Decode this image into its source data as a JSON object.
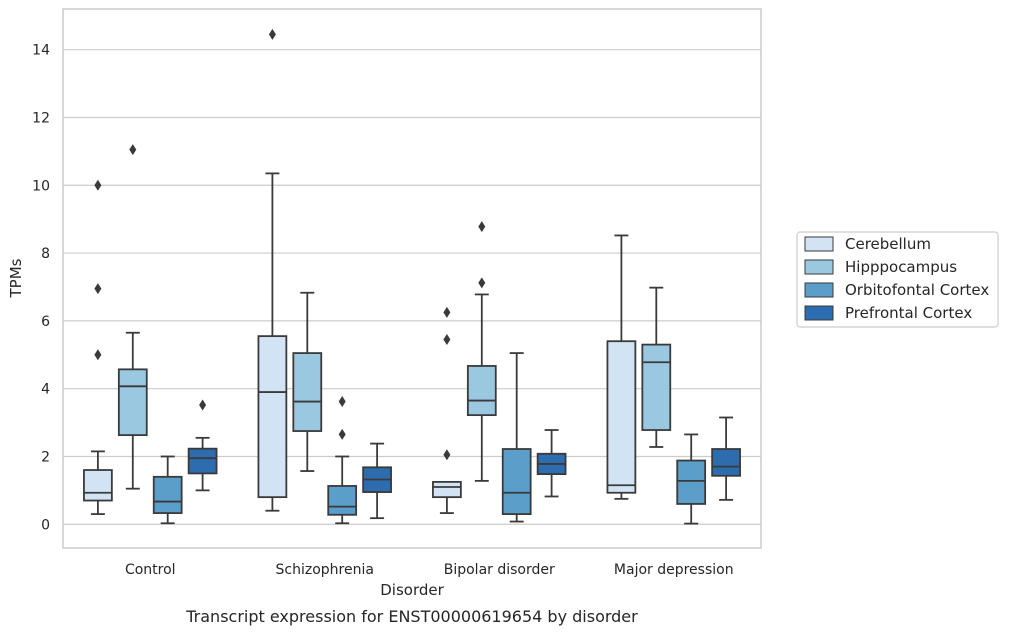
{
  "chart_data": {
    "type": "box",
    "title": "",
    "caption": "Transcript expression for ENST00000619654 by disorder",
    "xlabel": "Disorder",
    "ylabel": "TPMs",
    "ylim": [
      -0.7,
      15.2
    ],
    "yticks": [
      0,
      2,
      4,
      6,
      8,
      10,
      12,
      14
    ],
    "grid": "horizontal",
    "legend_position": "right",
    "categories": [
      "Control",
      "Schizophrenia",
      "Bipolar disorder",
      "Major depression"
    ],
    "series": [
      {
        "name": "Cerebellum",
        "color": "#d2e3f3",
        "boxes": [
          {
            "q1": 0.7,
            "median": 0.93,
            "q3": 1.6,
            "whisker_low": 0.3,
            "whisker_high": 2.15,
            "outliers": [
              5.0,
              6.95,
              10.0
            ]
          },
          {
            "q1": 0.8,
            "median": 3.9,
            "q3": 5.55,
            "whisker_low": 0.4,
            "whisker_high": 10.35,
            "outliers": [
              14.45
            ]
          },
          {
            "q1": 0.8,
            "median": 1.1,
            "q3": 1.25,
            "whisker_low": 0.33,
            "whisker_high": 1.25,
            "outliers": [
              2.05,
              5.45,
              6.25
            ]
          },
          {
            "q1": 0.93,
            "median": 1.15,
            "q3": 5.4,
            "whisker_low": 0.75,
            "whisker_high": 8.52,
            "outliers": []
          }
        ]
      },
      {
        "name": "Hipppocampus",
        "color": "#9ac8e0",
        "boxes": [
          {
            "q1": 2.63,
            "median": 4.07,
            "q3": 4.57,
            "whisker_low": 1.05,
            "whisker_high": 5.65,
            "outliers": [
              11.05
            ]
          },
          {
            "q1": 2.75,
            "median": 3.62,
            "q3": 5.05,
            "whisker_low": 1.57,
            "whisker_high": 6.83,
            "outliers": []
          },
          {
            "q1": 3.22,
            "median": 3.65,
            "q3": 4.67,
            "whisker_low": 1.28,
            "whisker_high": 6.78,
            "outliers": [
              7.12,
              8.78
            ]
          },
          {
            "q1": 2.78,
            "median": 4.78,
            "q3": 5.3,
            "whisker_low": 2.28,
            "whisker_high": 6.98,
            "outliers": []
          }
        ]
      },
      {
        "name": "Orbitofontal Cortex",
        "color": "#5a9ec9",
        "boxes": [
          {
            "q1": 0.33,
            "median": 0.67,
            "q3": 1.4,
            "whisker_low": 0.03,
            "whisker_high": 2.0,
            "outliers": []
          },
          {
            "q1": 0.28,
            "median": 0.52,
            "q3": 1.13,
            "whisker_low": 0.03,
            "whisker_high": 2.0,
            "outliers": [
              2.65,
              3.62
            ]
          },
          {
            "q1": 0.3,
            "median": 0.93,
            "q3": 2.22,
            "whisker_low": 0.08,
            "whisker_high": 5.05,
            "outliers": []
          },
          {
            "q1": 0.6,
            "median": 1.28,
            "q3": 1.88,
            "whisker_low": 0.02,
            "whisker_high": 2.65,
            "outliers": []
          }
        ]
      },
      {
        "name": "Prefrontal Cortex",
        "color": "#2d6daf",
        "boxes": [
          {
            "q1": 1.5,
            "median": 1.95,
            "q3": 2.23,
            "whisker_low": 1.0,
            "whisker_high": 2.55,
            "outliers": [
              3.52
            ]
          },
          {
            "q1": 0.95,
            "median": 1.32,
            "q3": 1.68,
            "whisker_low": 0.18,
            "whisker_high": 2.38,
            "outliers": []
          },
          {
            "q1": 1.48,
            "median": 1.78,
            "q3": 2.08,
            "whisker_low": 0.82,
            "whisker_high": 2.78,
            "outliers": []
          },
          {
            "q1": 1.43,
            "median": 1.7,
            "q3": 2.22,
            "whisker_low": 0.72,
            "whisker_high": 3.15,
            "outliers": []
          }
        ]
      }
    ]
  }
}
